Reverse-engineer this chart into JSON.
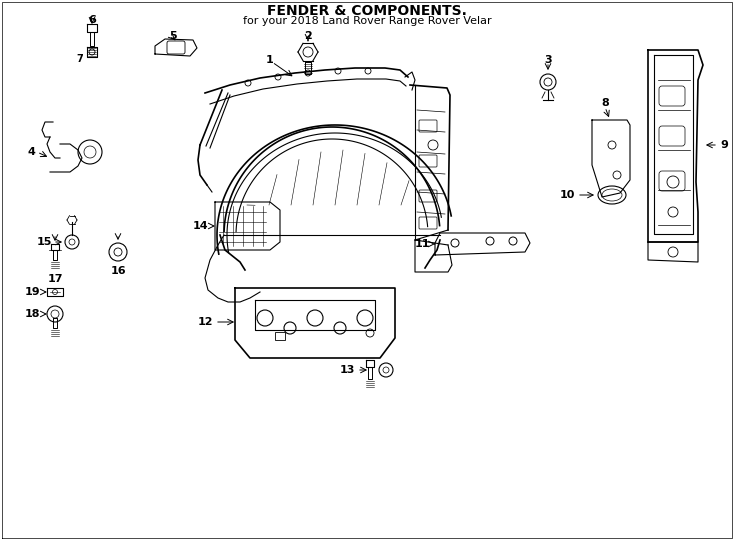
{
  "title": "FENDER & COMPONENTS.",
  "subtitle": "for your 2018 Land Rover Range Rover Velar",
  "bg_color": "#ffffff",
  "line_color": "#000000",
  "fig_width": 7.34,
  "fig_height": 5.4,
  "dpi": 100
}
